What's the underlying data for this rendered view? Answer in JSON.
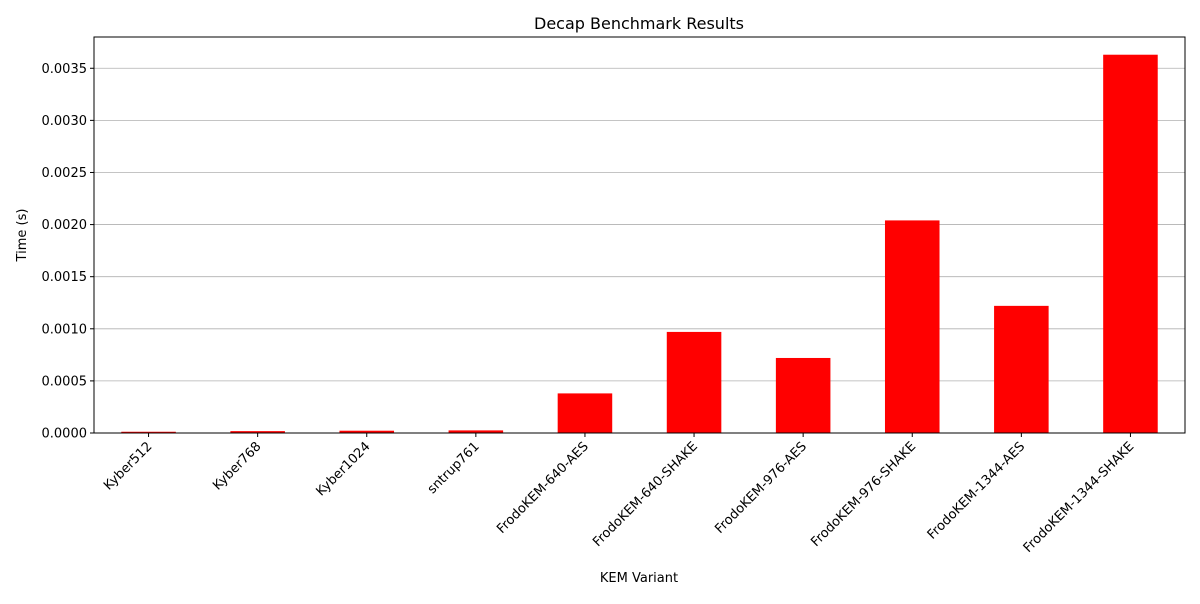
{
  "chart_data": {
    "type": "bar",
    "title": "Decap Benchmark Results",
    "xlabel": "KEM Variant",
    "ylabel": "Time (s)",
    "categories": [
      "Kyber512",
      "Kyber768",
      "Kyber1024",
      "sntrup761",
      "FrodoKEM-640-AES",
      "FrodoKEM-640-SHAKE",
      "FrodoKEM-976-AES",
      "FrodoKEM-976-SHAKE",
      "FrodoKEM-1344-AES",
      "FrodoKEM-1344-SHAKE"
    ],
    "values": [
      1.2e-05,
      1.8e-05,
      2.2e-05,
      2.5e-05,
      0.00038,
      0.00097,
      0.00072,
      0.00204,
      0.00122,
      0.00363
    ],
    "ylim": [
      0,
      0.0038
    ],
    "yticks": [
      "0.0000",
      "0.0005",
      "0.0010",
      "0.0015",
      "0.0020",
      "0.0025",
      "0.0030",
      "0.0035"
    ],
    "ytick_values": [
      0,
      0.0005,
      0.001,
      0.0015,
      0.002,
      0.0025,
      0.003,
      0.0035
    ],
    "grid": "y",
    "bar_color": "#ff0000",
    "legend": "none"
  }
}
